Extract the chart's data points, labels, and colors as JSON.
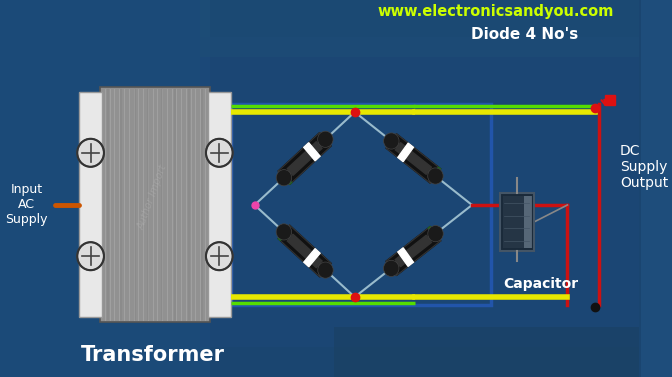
{
  "bg_color": "#1e4d7b",
  "bg_color2": "#1a4570",
  "title_text": "www.electronicsandyou.com",
  "title_color": "#ccff00",
  "title_fontsize": 10.5,
  "transformer_label": "Transformer",
  "transformer_label_color": "white",
  "transformer_label_fontsize": 15,
  "input_label": "Input\nAC\nSupply",
  "input_label_color": "white",
  "input_label_fontsize": 9,
  "diode_label": "Diode 4 No's",
  "diode_label_color": "white",
  "diode_label_fontsize": 11,
  "capacitor_label": "Capacitor",
  "capacitor_label_color": "white",
  "capacitor_label_fontsize": 10,
  "dc_label": "DC\nSupply\nOutput",
  "dc_label_color": "white",
  "dc_label_fontsize": 10,
  "wire_yellow": "#e8e800",
  "wire_green": "#55dd00",
  "wire_red": "#cc1111",
  "wire_thin": "#aabbcc",
  "node_red": "#dd1111",
  "node_pink": "#ee2266"
}
